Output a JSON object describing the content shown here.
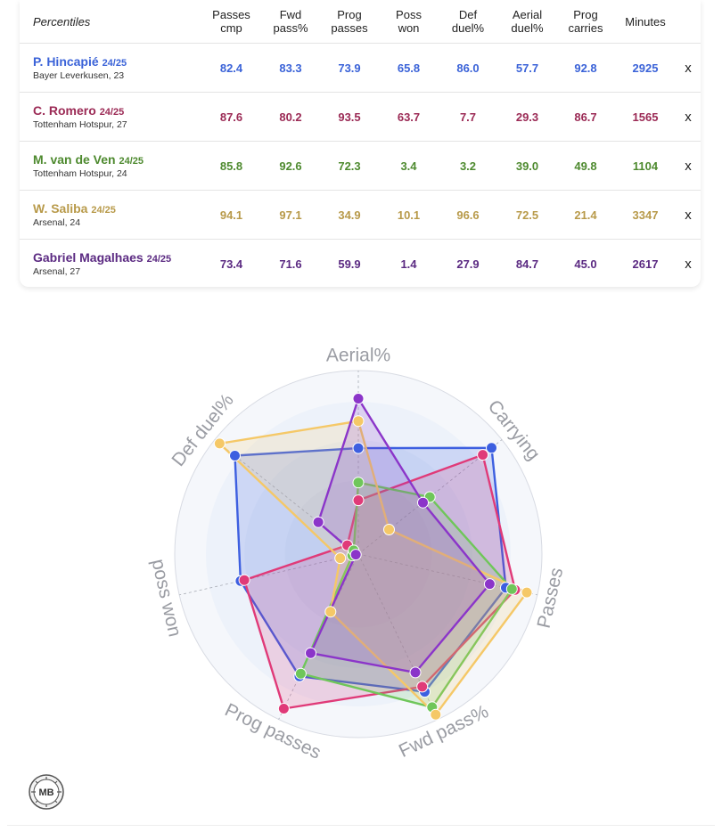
{
  "header": {
    "percentiles_label": "Percentiles",
    "columns": [
      {
        "line1": "Passes",
        "line2": "cmp"
      },
      {
        "line1": "Fwd",
        "line2": "pass%"
      },
      {
        "line1": "Prog",
        "line2": "passes"
      },
      {
        "line1": "Poss",
        "line2": "won"
      },
      {
        "line1": "Def",
        "line2": "duel%"
      },
      {
        "line1": "Aerial",
        "line2": "duel%"
      },
      {
        "line1": "Prog",
        "line2": "carries"
      },
      {
        "line1": "Minutes",
        "line2": ""
      }
    ]
  },
  "remove_label": "x",
  "players": [
    {
      "name": "P. Hincapié",
      "season": "24/25",
      "club": "Bayer Leverkusen, 23",
      "color": "#3b63d8",
      "values": [
        "82.4",
        "83.3",
        "73.9",
        "65.8",
        "86.0",
        "57.7",
        "92.8"
      ],
      "minutes": "2925"
    },
    {
      "name": "C. Romero",
      "season": "24/25",
      "club": "Tottenham Hotspur, 27",
      "color": "#9b2a55",
      "values": [
        "87.6",
        "80.2",
        "93.5",
        "63.7",
        "7.7",
        "29.3",
        "86.7"
      ],
      "minutes": "1565"
    },
    {
      "name": "M. van de Ven",
      "season": "24/25",
      "club": "Tottenham Hotspur, 24",
      "color": "#4e8a2f",
      "values": [
        "85.8",
        "92.6",
        "72.3",
        "3.4",
        "3.2",
        "39.0",
        "49.8"
      ],
      "minutes": "1104"
    },
    {
      "name": "W. Saliba",
      "season": "24/25",
      "club": "Arsenal, 24",
      "color": "#b89a4a",
      "values": [
        "94.1",
        "97.1",
        "34.9",
        "10.1",
        "96.6",
        "72.5",
        "21.4"
      ],
      "minutes": "3347"
    },
    {
      "name": "Gabriel Magalhaes",
      "season": "24/25",
      "club": "Arsenal, 27",
      "color": "#5b2a82",
      "values": [
        "73.4",
        "71.6",
        "59.9",
        "1.4",
        "27.9",
        "84.7",
        "45.0"
      ],
      "minutes": "2617"
    }
  ],
  "chart_data": {
    "type": "radar",
    "axes": [
      "Aerial%",
      "Carrying",
      "Passes",
      "Fwd pass%",
      "Prog passes",
      "poss won",
      "Def duel%"
    ],
    "range": [
      0,
      100
    ],
    "series": [
      {
        "name": "P. Hincapié",
        "line_color": "#3d5fe0",
        "values": [
          57.7,
          92.8,
          82.4,
          83.3,
          73.9,
          65.8,
          86.0
        ]
      },
      {
        "name": "C. Romero",
        "line_color": "#e03a78",
        "values": [
          29.3,
          86.7,
          87.6,
          80.2,
          93.5,
          63.7,
          7.7
        ]
      },
      {
        "name": "M. van de Ven",
        "line_color": "#6fc65a",
        "values": [
          39.0,
          49.8,
          85.8,
          92.6,
          72.3,
          3.4,
          3.2
        ]
      },
      {
        "name": "W. Saliba",
        "line_color": "#f5c867",
        "values": [
          72.5,
          21.4,
          94.1,
          97.1,
          34.9,
          10.1,
          96.6
        ]
      },
      {
        "name": "Gabriel Magalhaes",
        "line_color": "#8b35c9",
        "values": [
          84.7,
          45.0,
          73.4,
          71.6,
          59.9,
          1.4,
          27.9
        ]
      }
    ]
  },
  "logo_text": "MB"
}
